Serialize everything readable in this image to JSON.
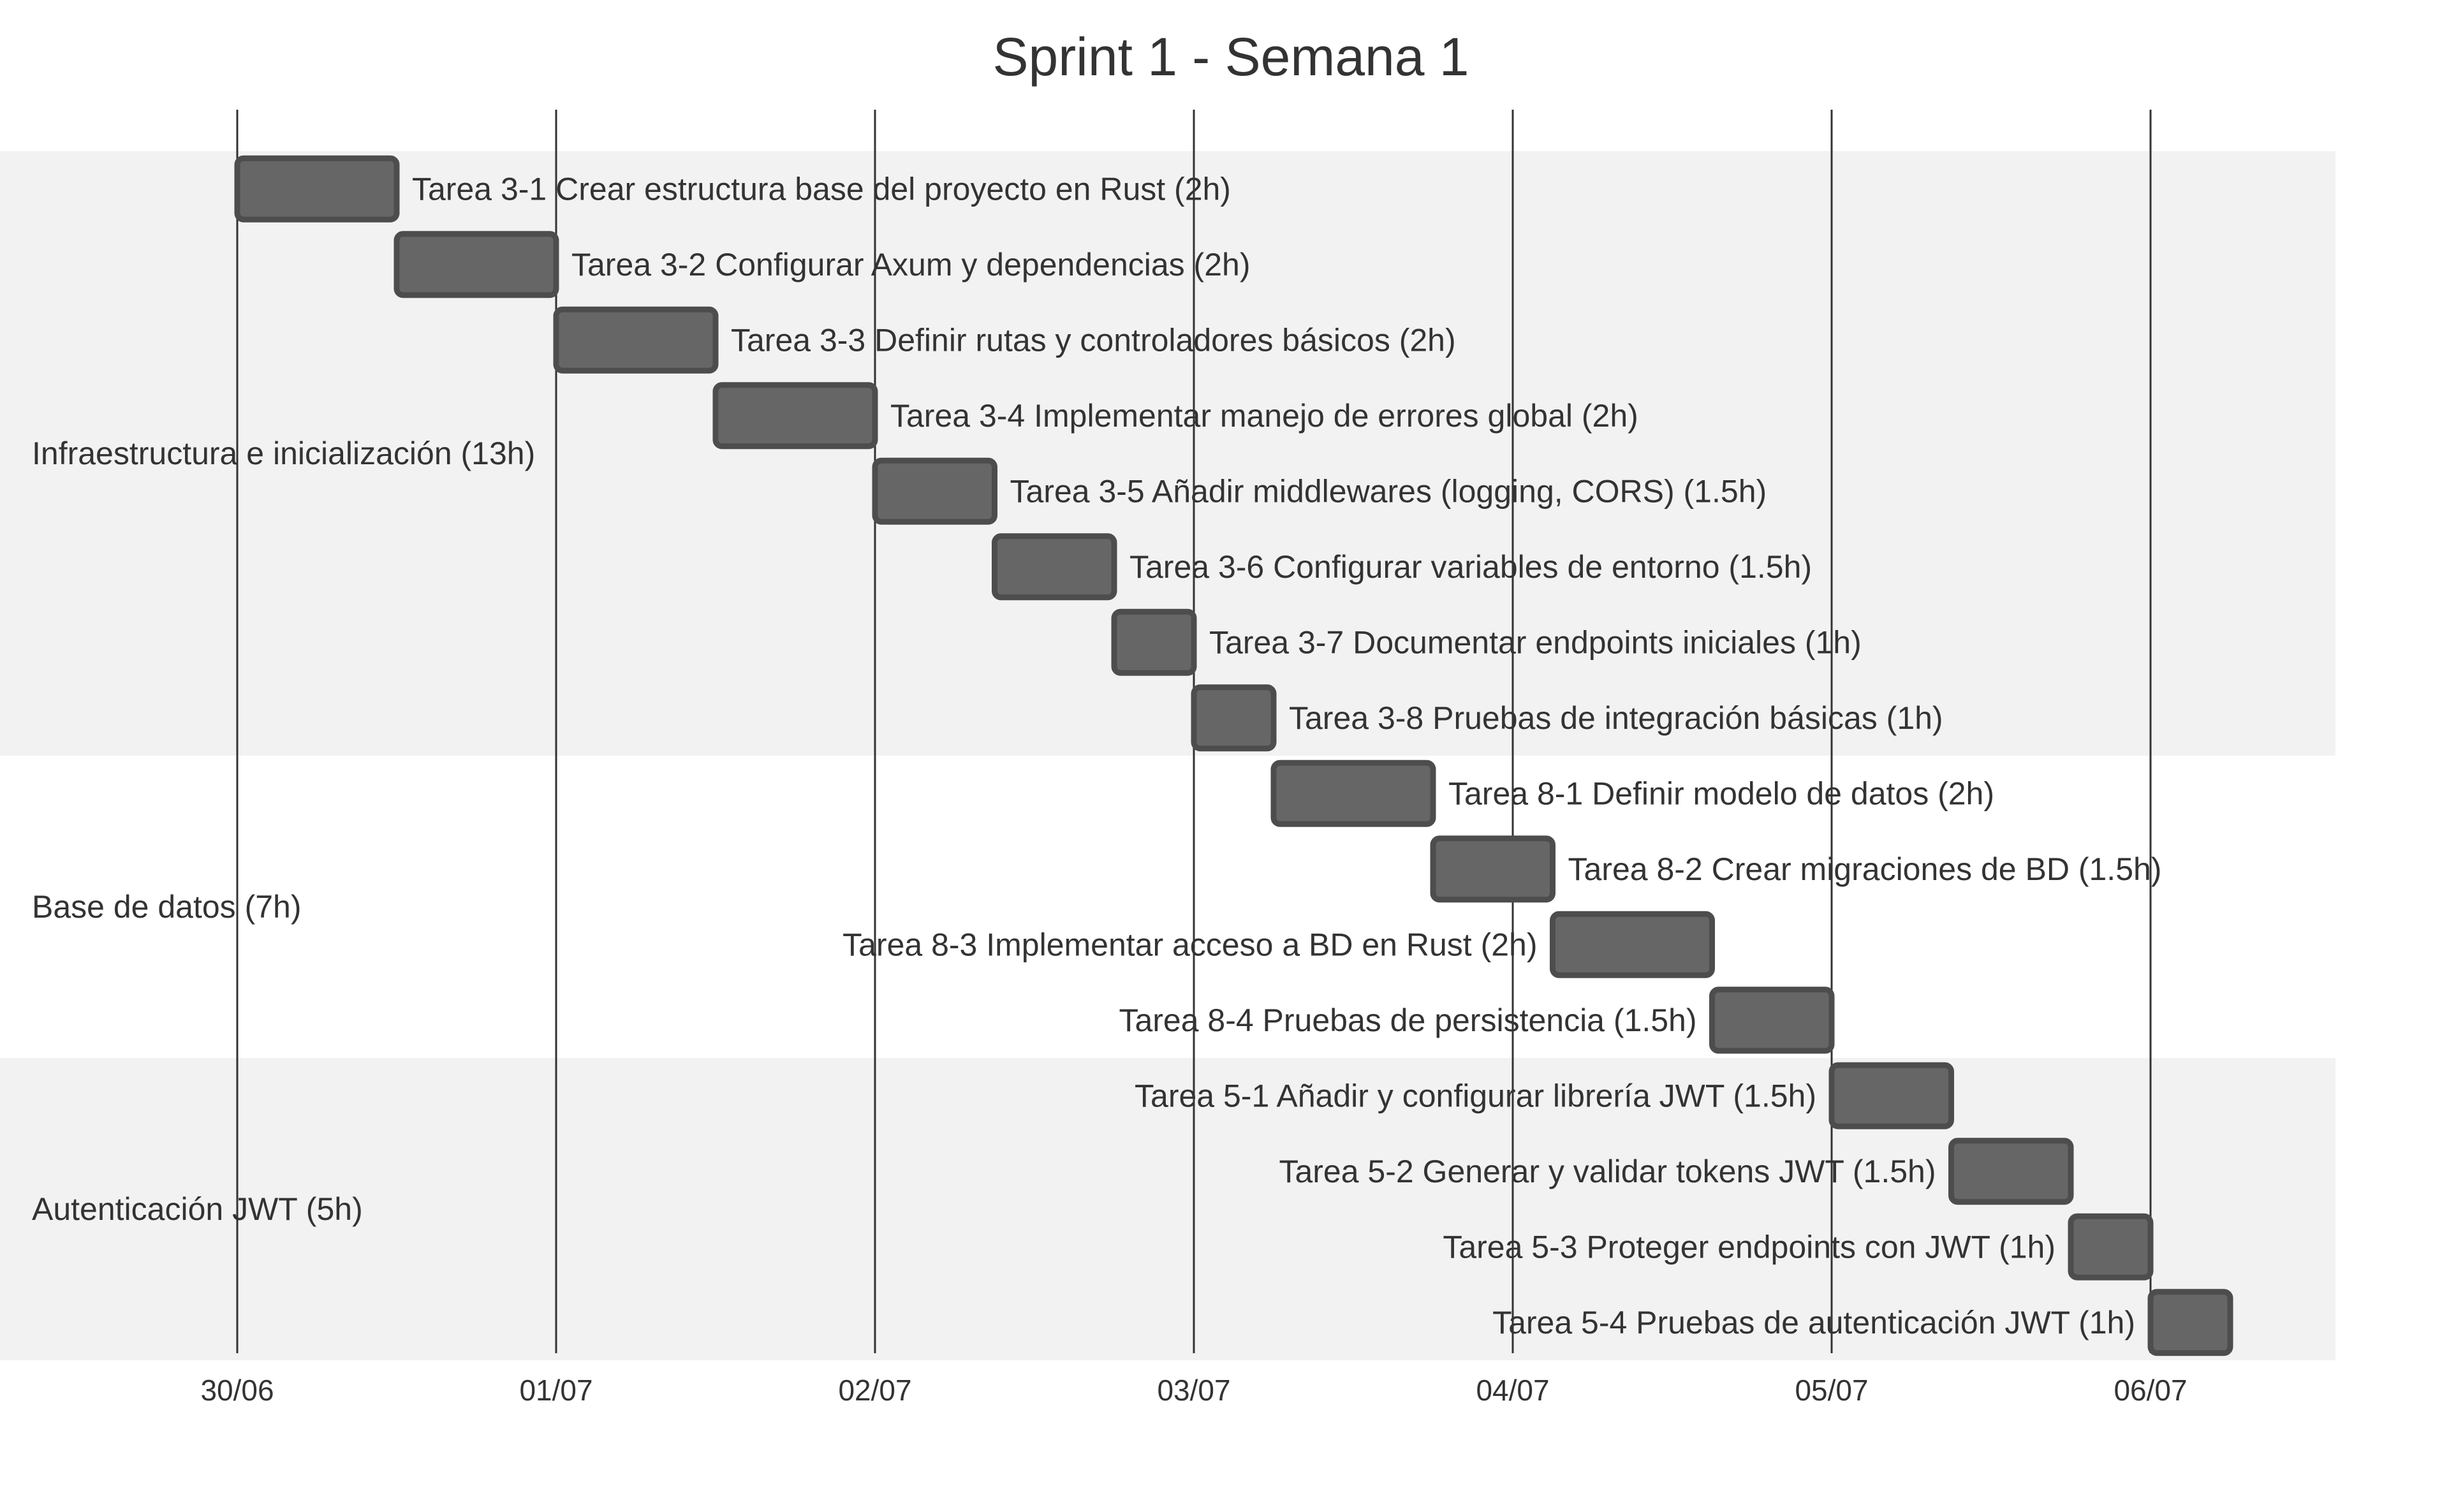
{
  "chart_data": {
    "type": "gantt",
    "title": "Sprint 1 - Semana 1",
    "x_axis": {
      "ticks": [
        "30/06",
        "01/07",
        "02/07",
        "03/07",
        "04/07",
        "05/07",
        "06/07"
      ],
      "range_days": [
        -0.74,
        6.61
      ]
    },
    "colors": {
      "bar": "#666666",
      "bar_border": "#4d4d4d",
      "section_band": "#f2f2f2",
      "grid": "#333333",
      "text": "#333333"
    },
    "sections": [
      {
        "name": "Infraestructura e inicialización (13h)",
        "tasks": [
          {
            "label": "Tarea 3-1 Crear estructura base del proyecto en Rust (2h)",
            "start": 0.0,
            "end": 0.5
          },
          {
            "label": "Tarea 3-2 Configurar Axum y dependencias (2h)",
            "start": 0.5,
            "end": 1.0
          },
          {
            "label": "Tarea 3-3 Definir rutas y controladores básicos (2h)",
            "start": 1.0,
            "end": 1.5
          },
          {
            "label": "Tarea 3-4 Implementar manejo de errores global (2h)",
            "start": 1.5,
            "end": 2.0
          },
          {
            "label": "Tarea 3-5 Añadir middlewares (logging, CORS) (1.5h)",
            "start": 2.0,
            "end": 2.375
          },
          {
            "label": "Tarea 3-6 Configurar variables de entorno (1.5h)",
            "start": 2.375,
            "end": 2.75
          },
          {
            "label": "Tarea 3-7 Documentar endpoints iniciales (1h)",
            "start": 2.75,
            "end": 3.0
          },
          {
            "label": "Tarea 3-8 Pruebas de integración básicas (1h)",
            "start": 3.0,
            "end": 3.25
          }
        ]
      },
      {
        "name": "Base de datos (7h)",
        "tasks": [
          {
            "label": "Tarea 8-1 Definir modelo de datos (2h)",
            "start": 3.25,
            "end": 3.75
          },
          {
            "label": "Tarea 8-2 Crear migraciones de BD (1.5h)",
            "start": 3.75,
            "end": 4.125
          },
          {
            "label": "Tarea 8-3 Implementar acceso a BD en Rust (2h)",
            "start": 4.125,
            "end": 4.625
          },
          {
            "label": "Tarea 8-4 Pruebas de persistencia (1.5h)",
            "start": 4.625,
            "end": 5.0
          }
        ]
      },
      {
        "name": "Autenticación JWT (5h)",
        "tasks": [
          {
            "label": "Tarea 5-1 Añadir y configurar librería JWT (1.5h)",
            "start": 5.0,
            "end": 5.375
          },
          {
            "label": "Tarea 5-2 Generar y validar tokens JWT (1.5h)",
            "start": 5.375,
            "end": 5.75
          },
          {
            "label": "Tarea 5-3 Proteger endpoints con JWT (1h)",
            "start": 5.75,
            "end": 6.0
          },
          {
            "label": "Tarea 5-4 Pruebas de autenticación JWT (1h)",
            "start": 6.0,
            "end": 6.25
          }
        ]
      }
    ]
  }
}
